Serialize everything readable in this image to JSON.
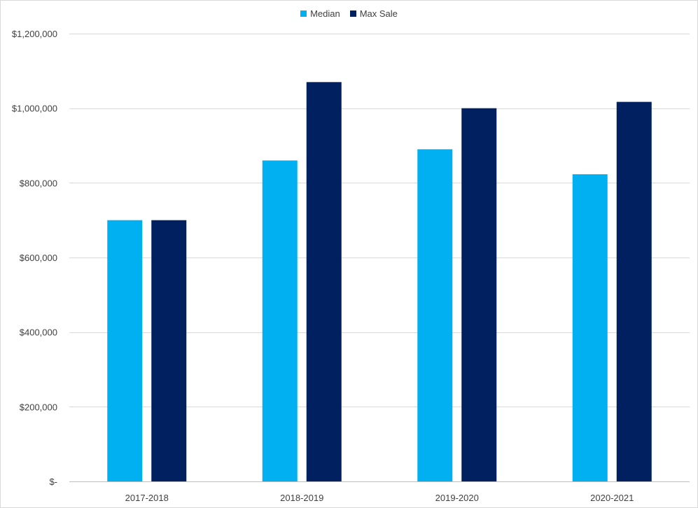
{
  "chart_data": {
    "type": "bar",
    "categories": [
      "2017-2018",
      "2018-2019",
      "2019-2020",
      "2020-2021"
    ],
    "series": [
      {
        "name": "Median",
        "values": [
          700000,
          860000,
          890000,
          823000
        ],
        "color": "#00b0f0"
      },
      {
        "name": "Max Sale",
        "values": [
          700000,
          1070000,
          1000000,
          1017000
        ],
        "color": "#002060"
      }
    ],
    "ylim": [
      0,
      1200000
    ],
    "yticks": [
      0,
      200000,
      400000,
      600000,
      800000,
      1000000,
      1200000
    ],
    "ytick_labels": [
      "$-",
      "$200,000",
      "$400,000",
      "$600,000",
      "$800,000",
      "$1,000,000",
      "$1,200,000"
    ],
    "grid": true,
    "legend_position": "top-center"
  }
}
